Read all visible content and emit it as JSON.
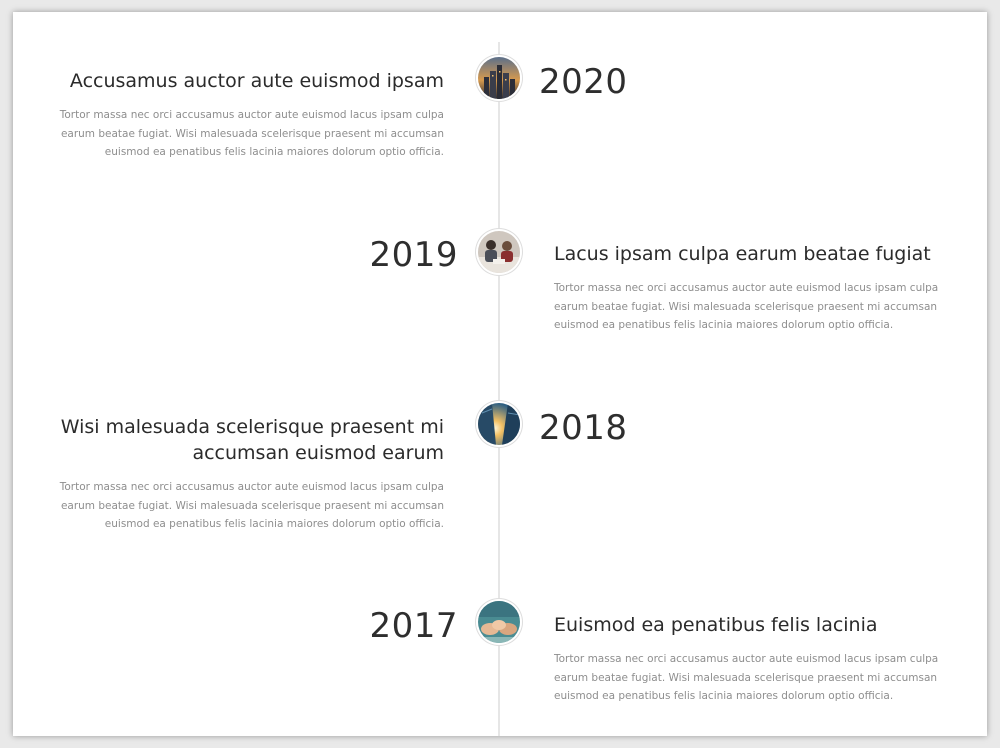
{
  "timeline": [
    {
      "year": "2020",
      "title": "Accusamus auctor aute euismod ipsam",
      "text": "Tortor massa nec orci accusamus auctor aute euismod lacus ipsam culpa earum beatae fugiat. Wisi malesuada scelerisque praesent mi accumsan euismod ea penatibus felis lacinia maiores dolorum optio officia.",
      "side": "left",
      "image": "city-skyline-icon"
    },
    {
      "year": "2019",
      "title": "Lacus ipsam culpa earum beatae fugiat",
      "text": "Tortor massa nec orci accusamus auctor aute euismod lacus ipsam culpa earum beatae fugiat. Wisi malesuada scelerisque praesent mi accumsan euismod ea penatibus felis lacinia maiores dolorum optio officia.",
      "side": "right",
      "image": "team-meeting-icon"
    },
    {
      "year": "2018",
      "title": "Wisi malesuada scelerisque praesent mi accumsan euismod earum",
      "text": "Tortor massa nec orci accusamus auctor aute euismod lacus ipsam culpa earum beatae fugiat. Wisi malesuada scelerisque praesent mi accumsan euismod ea penatibus felis lacinia maiores dolorum optio officia.",
      "side": "left",
      "image": "skyscraper-sunlight-icon"
    },
    {
      "year": "2017",
      "title": "Euismod ea penatibus felis lacinia",
      "text": "Tortor massa nec orci accusamus auctor aute euismod lacus ipsam culpa earum beatae fugiat. Wisi malesuada scelerisque praesent mi accumsan euismod ea penatibus felis lacinia maiores dolorum optio officia.",
      "side": "right",
      "image": "hands-together-icon"
    }
  ],
  "colors": {
    "heading": "#2b2b2b",
    "body_text": "#8e8e8e",
    "line": "#e6e6e6",
    "background": "#ffffff"
  }
}
